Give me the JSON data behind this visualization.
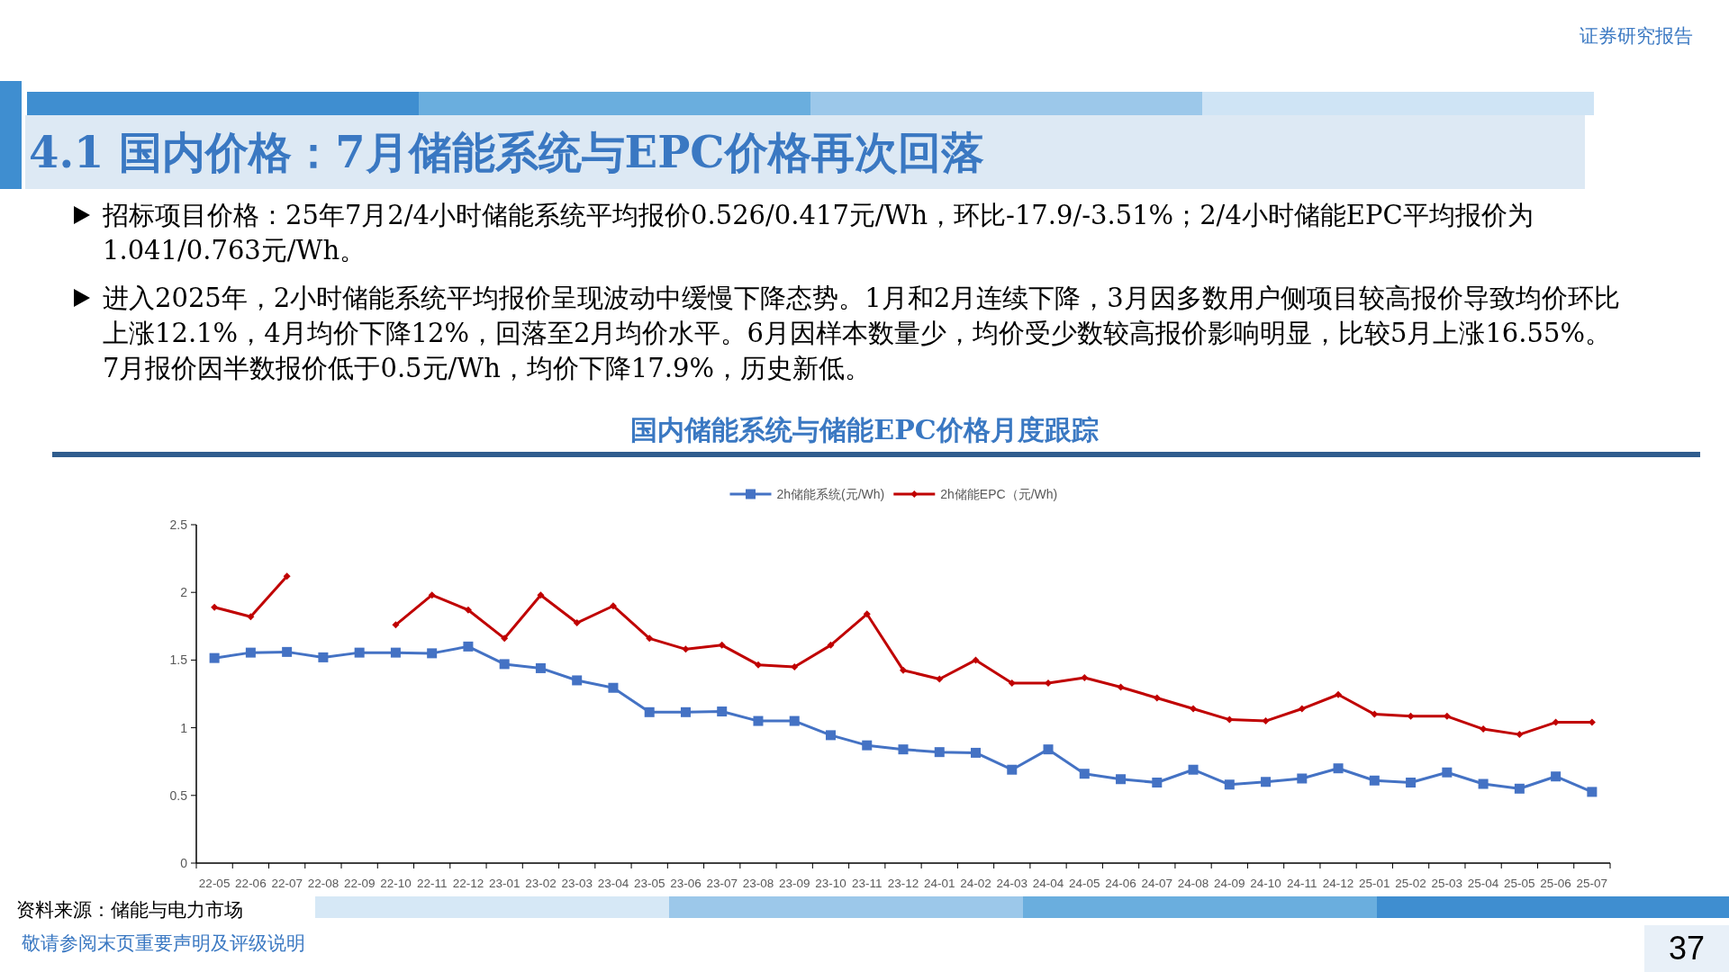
{
  "chart_data": {
    "type": "line",
    "title": "4.1 国内价格：7月储能系统与EPC价格再次回落",
    "subtitle": "国内储能系统与储能EPC价格月度跟踪",
    "categories": [
      "22-05",
      "22-06",
      "22-07",
      "22-08",
      "22-09",
      "22-10",
      "22-11",
      "22-12",
      "23-01",
      "23-02",
      "23-03",
      "23-04",
      "23-05",
      "23-06",
      "23-07",
      "23-08",
      "23-09",
      "23-10",
      "23-11",
      "23-12",
      "24-01",
      "24-02",
      "24-03",
      "24-04",
      "24-05",
      "24-06",
      "24-07",
      "24-08",
      "24-09",
      "24-10",
      "24-11",
      "24-12",
      "25-01",
      "25-02",
      "25-03",
      "25-04",
      "25-05",
      "25-06",
      "25-07"
    ],
    "series": [
      {
        "name": "2h储能系统(元/Wh)",
        "color": "#4472c4",
        "marker": "square",
        "values": [
          1.515,
          1.555,
          1.56,
          1.52,
          1.555,
          1.555,
          1.55,
          1.6,
          1.47,
          1.44,
          1.35,
          1.295,
          1.115,
          1.115,
          1.12,
          1.05,
          1.05,
          0.945,
          0.87,
          0.84,
          0.82,
          0.815,
          0.69,
          0.84,
          0.66,
          0.62,
          0.595,
          0.69,
          0.58,
          0.6,
          0.625,
          0.7,
          0.61,
          0.595,
          0.67,
          0.585,
          0.55,
          0.64,
          0.526
        ]
      },
      {
        "name": "2h储能EPC（元/Wh)",
        "color": "#c00000",
        "marker": "diamond",
        "values": [
          1.89,
          1.82,
          2.12,
          null,
          null,
          1.76,
          1.98,
          1.87,
          1.66,
          1.98,
          1.775,
          1.9,
          1.66,
          1.58,
          1.61,
          1.465,
          1.45,
          1.61,
          1.84,
          1.425,
          1.36,
          1.5,
          1.33,
          1.33,
          1.37,
          1.3,
          1.22,
          1.14,
          1.06,
          1.05,
          1.14,
          1.245,
          1.1,
          1.085,
          1.085,
          0.99,
          0.95,
          1.04,
          1.041
        ]
      }
    ],
    "ylim": [
      0,
      2.5
    ],
    "yticks": [
      0,
      0.5,
      1,
      1.5,
      2,
      2.5
    ],
    "grid": false,
    "legend": "top",
    "line_style": "solid",
    "annotations": [
      "证券研究报告",
      "招标项目价格：25年7月2/4小时储能系统平均报价0.526/0.417元/Wh，环比-17.9/-3.51%；2/4小时储能EPC平均报价为1.041/0.763元/Wh。",
      "进入2025年，2小时储能系统平均报价呈现波动中缓慢下降态势。1月和2月连续下降，3月因多数用户侧项目较高报价导致均价环比上涨12.1%，4月均价下降12%，回落至2月均价水平。6月因样本数量少，均价受少数较高报价影响明显，比较5月上涨16.55%。7月报价因半数报价低于0.5元/Wh，均价下降17.9%，历史新低。",
      "资料来源：储能与电力市场",
      "敬请参阅末页重要声明及评级说明",
      "37"
    ]
  }
}
